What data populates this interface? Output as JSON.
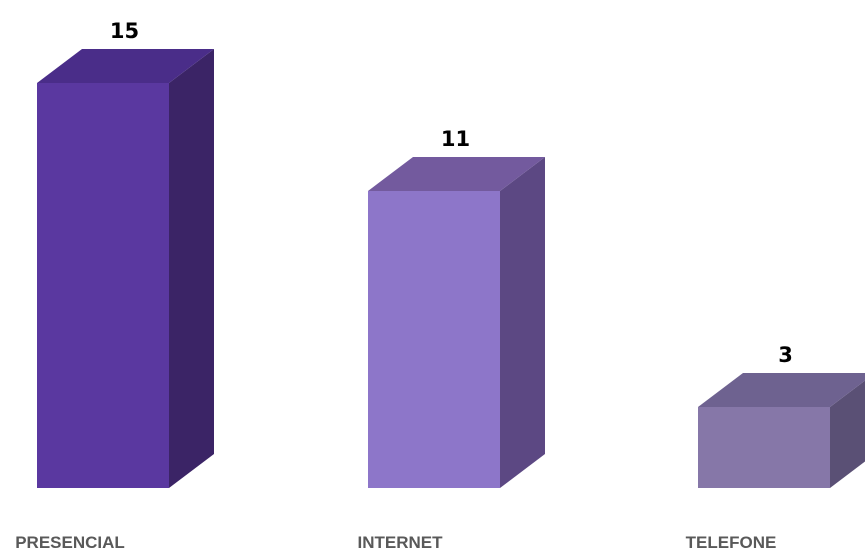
{
  "chart_data": {
    "type": "bar",
    "style": "3d-column",
    "categories": [
      "PRESENCIAL",
      "INTERNET",
      "TELEFONE"
    ],
    "values": [
      15,
      11,
      3
    ],
    "data_labels": [
      "15",
      "11",
      "3"
    ],
    "colors": [
      {
        "front": "#5a38a0",
        "top": "#4a2d89",
        "side": "#3b2466"
      },
      {
        "front": "#8d76c9",
        "top": "#735a9e",
        "side": "#5c4883"
      },
      {
        "front": "#8677a8",
        "top": "#6e6290",
        "side": "#5a5075"
      }
    ],
    "title": "",
    "xlabel": "",
    "ylabel": "",
    "ylim": [
      0,
      15
    ],
    "grid": false,
    "legend": "none"
  }
}
